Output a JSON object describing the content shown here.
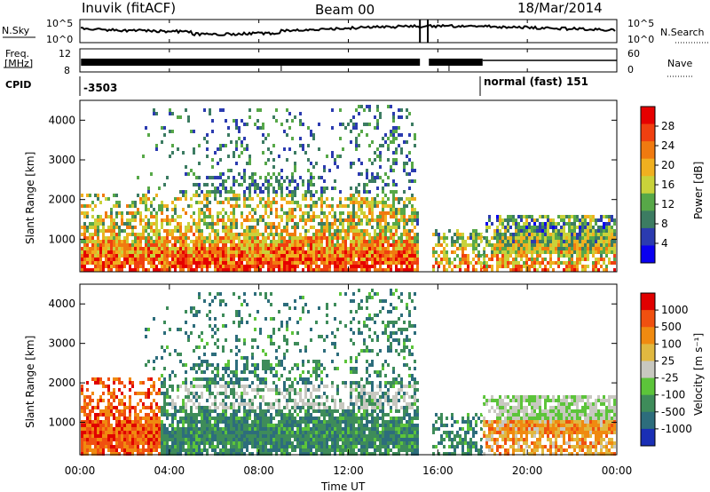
{
  "header": {
    "station": "Inuvik (fitACF)",
    "beam": "Beam 00",
    "date": "18/Mar/2014"
  },
  "noise_panel": {
    "left_label": "N.Sky",
    "right_label": "N.Search",
    "left_ticks": [
      "10^5",
      "10^0"
    ],
    "right_ticks": [
      "10^5",
      "10^0"
    ]
  },
  "freq_panel": {
    "left_label_1": "Freq.",
    "left_label_2": "[MHz]",
    "left_ticks": [
      "12",
      "8"
    ],
    "right_label": "Nave",
    "right_ticks": [
      "60",
      "0"
    ]
  },
  "cpid_panel": {
    "label": "CPID",
    "segment_1": "-3503",
    "segment_2": "normal (fast) 151"
  },
  "colors": {
    "power_scale": [
      "#0a00f0",
      "#2b3bb0",
      "#3c7c62",
      "#57a848",
      "#c9d23a",
      "#f0b020",
      "#f07a10",
      "#f04010",
      "#e60000"
    ],
    "velocity_scale": [
      "#1a2fb5",
      "#2d6d7c",
      "#3e8c5a",
      "#5cc43a",
      "#c8c8c0",
      "#e0b840",
      "#f08a10",
      "#f05010",
      "#e00000"
    ]
  },
  "chart_data": [
    {
      "type": "heatmap",
      "panel": "power",
      "ylabel": "Slant Range [km]",
      "yticks": [
        "1000",
        "2000",
        "3000",
        "4000"
      ],
      "ylim": [
        180,
        4500
      ],
      "xlim_hours": [
        0,
        24
      ],
      "colorbar_label": "Power [dB]",
      "colorbar_ticks": [
        "28",
        "24",
        "20",
        "16",
        "12",
        "8",
        "4"
      ],
      "colorbar_range": [
        0,
        32
      ],
      "data_gaps_hours": [
        [
          15.2,
          15.6
        ]
      ]
    },
    {
      "type": "heatmap",
      "panel": "velocity",
      "ylabel": "Slant Range [km]",
      "yticks": [
        "1000",
        "2000",
        "3000",
        "4000"
      ],
      "ylim": [
        180,
        4500
      ],
      "xlim_hours": [
        0,
        24
      ],
      "colorbar_label": "Velocity [m s⁻¹]",
      "colorbar_ticks": [
        "1000",
        "500",
        "100",
        "25",
        "-25",
        "-100",
        "-500",
        "-1000"
      ],
      "data_gaps_hours": [
        [
          15.2,
          15.6
        ]
      ]
    }
  ],
  "xaxis": {
    "label": "Time UT",
    "ticks": [
      "00:00",
      "04:00",
      "08:00",
      "12:00",
      "16:00",
      "20:00",
      "00:00"
    ]
  }
}
